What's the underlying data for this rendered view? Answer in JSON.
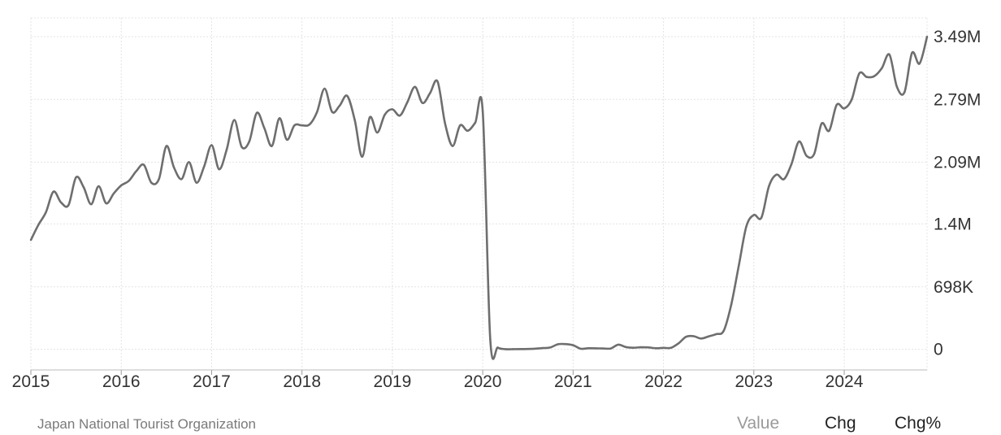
{
  "chart_data": {
    "type": "line",
    "title": "",
    "xlabel": "",
    "ylabel": "",
    "x_ticks": [
      "2015",
      "2016",
      "2017",
      "2018",
      "2019",
      "2020",
      "2021",
      "2022",
      "2023",
      "2024"
    ],
    "y_ticks": [
      {
        "value": 0,
        "label": "0"
      },
      {
        "value": 698000,
        "label": "698K"
      },
      {
        "value": 1400000,
        "label": "1.4M"
      },
      {
        "value": 2090000,
        "label": "2.09M"
      },
      {
        "value": 2790000,
        "label": "2.79M"
      },
      {
        "value": 3490000,
        "label": "3.49M"
      }
    ],
    "ylim": [
      -230000,
      3700000
    ],
    "xlim": [
      "2015-01",
      "2024-12"
    ],
    "grid": true,
    "line_color": "#6e6e6e",
    "series": [
      {
        "x": [
          "2015-01",
          "2015-02",
          "2015-03",
          "2015-04",
          "2015-05",
          "2015-06",
          "2015-07",
          "2015-08",
          "2015-09",
          "2015-10",
          "2015-11",
          "2015-12",
          "2016-01",
          "2016-02",
          "2016-03",
          "2016-04",
          "2016-05",
          "2016-06",
          "2016-07",
          "2016-08",
          "2016-09",
          "2016-10",
          "2016-11",
          "2016-12",
          "2017-01",
          "2017-02",
          "2017-03",
          "2017-04",
          "2017-05",
          "2017-06",
          "2017-07",
          "2017-08",
          "2017-09",
          "2017-10",
          "2017-11",
          "2017-12",
          "2018-01",
          "2018-02",
          "2018-03",
          "2018-04",
          "2018-05",
          "2018-06",
          "2018-07",
          "2018-08",
          "2018-09",
          "2018-10",
          "2018-11",
          "2018-12",
          "2019-01",
          "2019-02",
          "2019-03",
          "2019-04",
          "2019-05",
          "2019-06",
          "2019-07",
          "2019-08",
          "2019-09",
          "2019-10",
          "2019-11",
          "2019-12",
          "2020-01",
          "2020-02",
          "2020-03",
          "2020-04",
          "2020-05",
          "2020-06",
          "2020-07",
          "2020-08",
          "2020-09",
          "2020-10",
          "2020-11",
          "2020-12",
          "2021-01",
          "2021-02",
          "2021-03",
          "2021-04",
          "2021-05",
          "2021-06",
          "2021-07",
          "2021-08",
          "2021-09",
          "2021-10",
          "2021-11",
          "2021-12",
          "2022-01",
          "2022-02",
          "2022-03",
          "2022-04",
          "2022-05",
          "2022-06",
          "2022-07",
          "2022-08",
          "2022-09",
          "2022-10",
          "2022-11",
          "2022-12",
          "2023-01",
          "2023-02",
          "2023-03",
          "2023-04",
          "2023-05",
          "2023-06",
          "2023-07",
          "2023-08",
          "2023-09",
          "2023-10",
          "2023-11",
          "2023-12",
          "2024-01",
          "2024-02",
          "2024-03",
          "2024-04",
          "2024-05",
          "2024-06",
          "2024-07",
          "2024-08",
          "2024-09",
          "2024-10",
          "2024-11",
          "2024-12"
        ],
        "values": [
          1220000,
          1390000,
          1530000,
          1760000,
          1640000,
          1610000,
          1920000,
          1810000,
          1620000,
          1820000,
          1630000,
          1740000,
          1830000,
          1880000,
          1990000,
          2060000,
          1860000,
          1900000,
          2270000,
          2030000,
          1900000,
          2090000,
          1860000,
          2040000,
          2280000,
          2010000,
          2230000,
          2560000,
          2260000,
          2320000,
          2640000,
          2470000,
          2270000,
          2580000,
          2340000,
          2500000,
          2500000,
          2510000,
          2650000,
          2910000,
          2650000,
          2720000,
          2830000,
          2560000,
          2150000,
          2590000,
          2420000,
          2620000,
          2680000,
          2610000,
          2760000,
          2930000,
          2750000,
          2860000,
          2990000,
          2520000,
          2270000,
          2500000,
          2440000,
          2530000,
          2660000,
          110000,
          20000,
          2000,
          2000,
          3000,
          4000,
          8000,
          14000,
          22000,
          57000,
          59000,
          46000,
          7000,
          12000,
          11000,
          10000,
          10000,
          52000,
          26000,
          18000,
          23000,
          21000,
          12000,
          17000,
          17000,
          67000,
          140000,
          147000,
          121000,
          145000,
          170000,
          207000,
          499000,
          935000,
          1370000,
          1500000,
          1470000,
          1820000,
          1950000,
          1900000,
          2070000,
          2320000,
          2160000,
          2180000,
          2520000,
          2440000,
          2730000,
          2690000,
          2790000,
          3080000,
          3040000,
          3050000,
          3140000,
          3290000,
          2930000,
          2870000,
          3310000,
          3190000,
          3490000
        ]
      }
    ]
  },
  "footer": {
    "source": "Japan National Tourist Organization",
    "tabs": {
      "value": "Value",
      "chg": "Chg",
      "chg_pct": "Chg%"
    }
  }
}
